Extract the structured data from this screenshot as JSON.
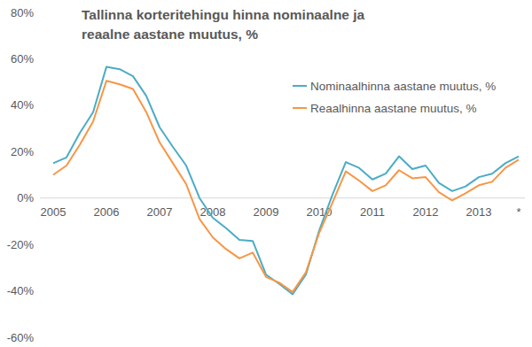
{
  "chart_data": {
    "type": "line",
    "title": "Tallinna korteritehingu hinna nominaalne ja reaalne aastane muutus, %",
    "categories": [
      "2005",
      null,
      null,
      null,
      "2006",
      null,
      null,
      null,
      "2007",
      null,
      null,
      null,
      "2008",
      null,
      null,
      null,
      "2009",
      null,
      null,
      null,
      "2010",
      null,
      null,
      null,
      "2011",
      null,
      null,
      null,
      "2012",
      null,
      null,
      null,
      "2013",
      null,
      null,
      "*"
    ],
    "series": [
      {
        "name": "Nominaalhinna aastane muutus, %",
        "color": "#4bacc6",
        "values": [
          15,
          17.5,
          28,
          37,
          56.5,
          55.5,
          52.5,
          44,
          30.5,
          22,
          14,
          0,
          -8.5,
          -13,
          -18,
          -18.5,
          -33,
          -37,
          -41.5,
          -33,
          -14,
          1.5,
          15.5,
          13,
          8,
          10.5,
          18,
          12.5,
          14,
          6.5,
          3,
          5,
          9,
          10.5,
          15,
          18
        ]
      },
      {
        "name": "Reaalhinna aastane muutus, %",
        "color": "#f79646",
        "values": [
          10,
          14,
          23,
          33,
          50.5,
          49,
          47,
          37,
          24,
          15,
          6,
          -9,
          -17,
          -22,
          -26,
          -23.5,
          -34,
          -36.5,
          -40.5,
          -32,
          -15,
          -2,
          11.5,
          7.5,
          3,
          5.5,
          12,
          8.5,
          9,
          2.5,
          -1,
          2,
          5.5,
          7,
          13,
          16.5
        ]
      }
    ],
    "ylim": [
      -60,
      80
    ],
    "yticks": [
      {
        "value": -60,
        "label": "-60%"
      },
      {
        "value": -40,
        "label": "-40%"
      },
      {
        "value": -20,
        "label": "-20%"
      },
      {
        "value": 0,
        "label": "0%"
      },
      {
        "value": 20,
        "label": "20%"
      },
      {
        "value": 40,
        "label": "40%"
      },
      {
        "value": 60,
        "label": "60%"
      },
      {
        "value": 80,
        "label": "80%"
      }
    ],
    "grid": false,
    "legend": "right"
  }
}
